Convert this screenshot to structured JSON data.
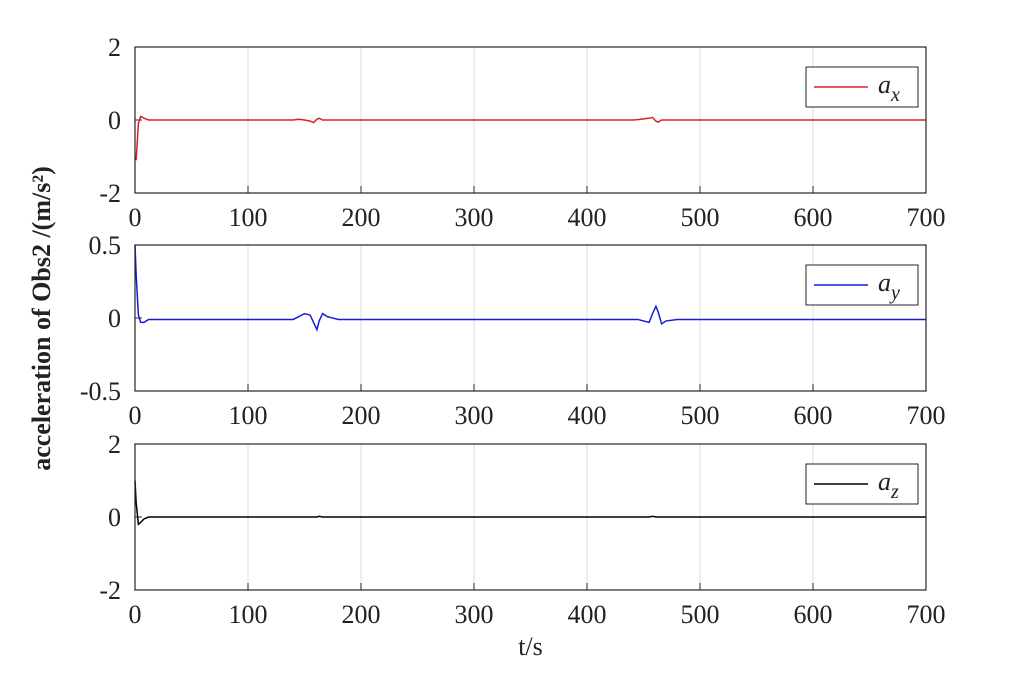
{
  "chart_data": [
    {
      "type": "line",
      "xlim": [
        0,
        700
      ],
      "xticks": [
        0,
        100,
        200,
        300,
        400,
        500,
        600,
        700
      ],
      "ylim": [
        -2,
        2
      ],
      "yticks": [
        -2,
        0,
        2
      ],
      "grid": "x",
      "legend": "upper right",
      "x": [
        0,
        1,
        3,
        5,
        8,
        12,
        20,
        140,
        145,
        150,
        155,
        158,
        161,
        163,
        166,
        170,
        180,
        440,
        445,
        450,
        455,
        458,
        461,
        463,
        466,
        470,
        480,
        700
      ],
      "series": [
        {
          "name": "a",
          "name_subscript": "x",
          "color": "#e0201b",
          "values": [
            -1,
            -1.1,
            -0.1,
            0.1,
            0.05,
            0,
            0,
            0,
            0.02,
            0,
            -0.03,
            -0.07,
            0.02,
            0.05,
            0,
            0,
            0,
            0,
            0.01,
            0.03,
            0.05,
            0.07,
            -0.03,
            -0.06,
            0,
            0,
            0,
            0
          ]
        }
      ]
    },
    {
      "type": "line",
      "xlim": [
        0,
        700
      ],
      "xticks": [
        0,
        100,
        200,
        300,
        400,
        500,
        600,
        700
      ],
      "ylim": [
        -0.5,
        0.5
      ],
      "yticks": [
        -0.5,
        0,
        0.5
      ],
      "grid": "x",
      "legend": "upper right",
      "ylabel": "acceleration of Obs2 /(m/s²)",
      "x": [
        0,
        1,
        3,
        5,
        8,
        12,
        20,
        140,
        145,
        150,
        155,
        158,
        161,
        163,
        166,
        170,
        180,
        440,
        445,
        450,
        455,
        458,
        461,
        463,
        466,
        470,
        480,
        700
      ],
      "series": [
        {
          "name": "a",
          "name_subscript": "y",
          "color": "#1a1adb",
          "values": [
            0.5,
            0.3,
            0.02,
            -0.03,
            -0.03,
            -0.01,
            -0.01,
            -0.01,
            0.01,
            0.03,
            0.02,
            -0.03,
            -0.08,
            -0.02,
            0.03,
            0.01,
            -0.01,
            -0.01,
            -0.01,
            -0.02,
            -0.03,
            0.03,
            0.08,
            0.04,
            -0.04,
            -0.02,
            -0.01,
            -0.01
          ]
        }
      ]
    },
    {
      "type": "line",
      "xlim": [
        0,
        700
      ],
      "xticks": [
        0,
        100,
        200,
        300,
        400,
        500,
        600,
        700
      ],
      "ylim": [
        -2,
        2
      ],
      "yticks": [
        -2,
        0,
        2
      ],
      "grid": "x",
      "legend": "upper right",
      "xlabel": "t/s",
      "x": [
        0,
        1,
        3,
        5,
        8,
        12,
        20,
        140,
        145,
        150,
        155,
        158,
        161,
        163,
        166,
        170,
        180,
        440,
        445,
        450,
        455,
        458,
        461,
        463,
        466,
        470,
        480,
        700
      ],
      "series": [
        {
          "name": "a",
          "name_subscript": "z",
          "color": "#000000",
          "values": [
            1,
            0.4,
            -0.2,
            -0.15,
            -0.05,
            0,
            0,
            0,
            0,
            0,
            0,
            0,
            0,
            0.02,
            0,
            0,
            0,
            0,
            0,
            0,
            0,
            0.02,
            0,
            0,
            0,
            0,
            0,
            0
          ]
        }
      ]
    }
  ]
}
